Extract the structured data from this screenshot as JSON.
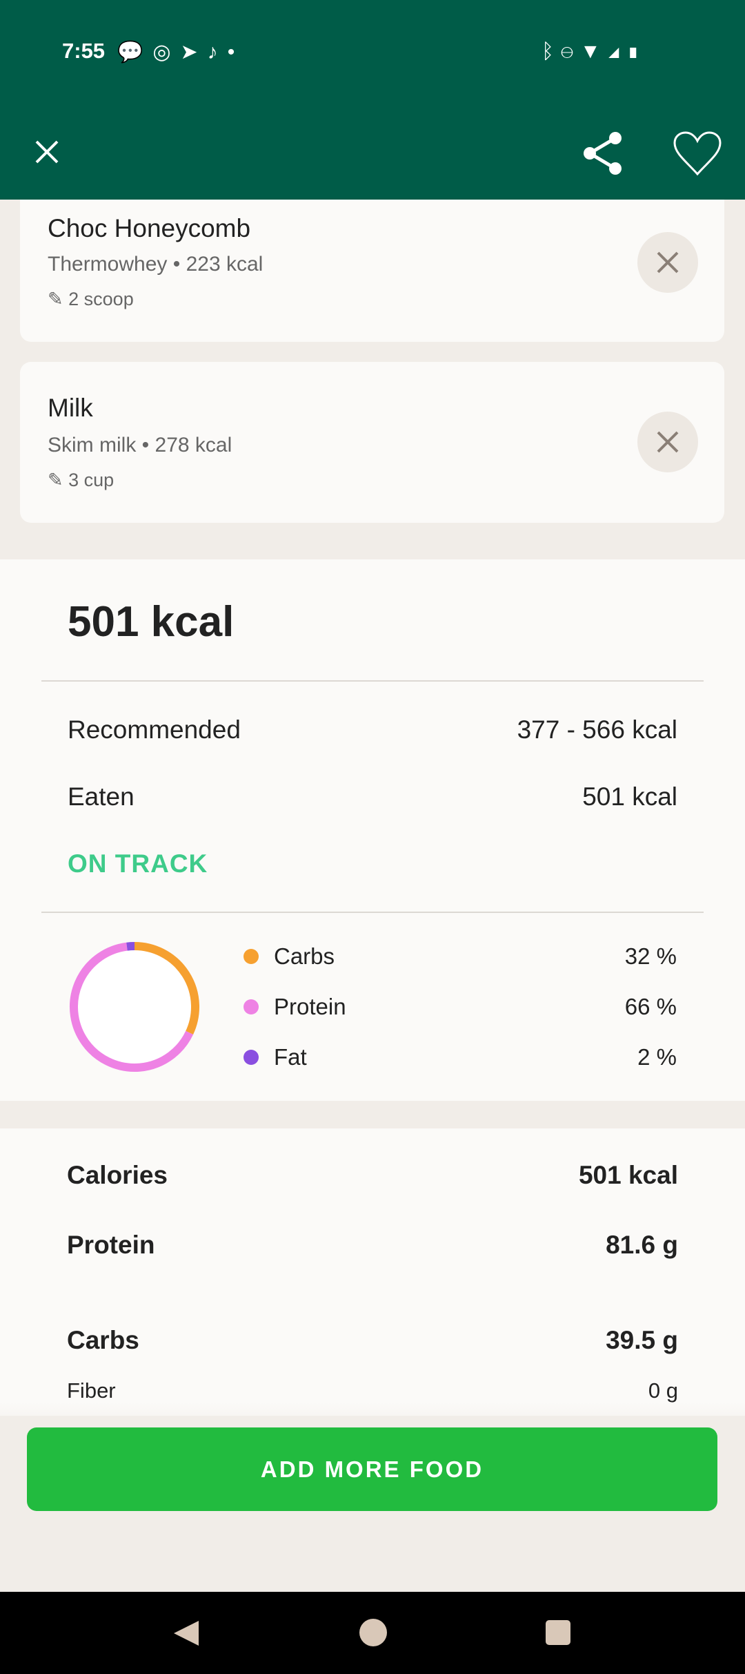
{
  "status_bar": {
    "time": "7:55",
    "icons": [
      "messenger-icon",
      "whatsapp-icon",
      "telegram-icon",
      "tiktok-icon",
      "dot-icon",
      "bluetooth-icon",
      "dnd-icon",
      "wifi-icon",
      "signal-icon",
      "battery-icon"
    ]
  },
  "header": {
    "close_icon": "close-icon",
    "share_icon": "share-icon",
    "favorite_icon": "heart-icon"
  },
  "foods": [
    {
      "name": "Choc Honeycomb",
      "brand": "Thermowhey",
      "kcal": "223 kcal",
      "qty": "2 scoop"
    },
    {
      "name": "Milk",
      "brand": "Skim milk",
      "kcal": "278 kcal",
      "qty": "3 cup"
    }
  ],
  "summary": {
    "total": "501 kcal",
    "recommended_label": "Recommended",
    "recommended_value": "377 - 566 kcal",
    "eaten_label": "Eaten",
    "eaten_value": "501 kcal",
    "status": "ON TRACK",
    "status_color": "#3ecb8a"
  },
  "macros": [
    {
      "label": "Carbs",
      "value": "32 %",
      "pct": 32,
      "color": "#f6a030"
    },
    {
      "label": "Protein",
      "value": "66 %",
      "pct": 66,
      "color": "#ee82e4"
    },
    {
      "label": "Fat",
      "value": "2 %",
      "pct": 2,
      "color": "#8a4fe0"
    }
  ],
  "nutrition": [
    {
      "label": "Calories",
      "value": "501 kcal"
    },
    {
      "label": "Protein",
      "value": "81.6 g"
    },
    {
      "label": "Carbs",
      "value": "39.5 g"
    },
    {
      "label": "Fiber",
      "value": "0 g"
    }
  ],
  "add_button": "ADD MORE FOOD",
  "accent": "#22bb3f"
}
